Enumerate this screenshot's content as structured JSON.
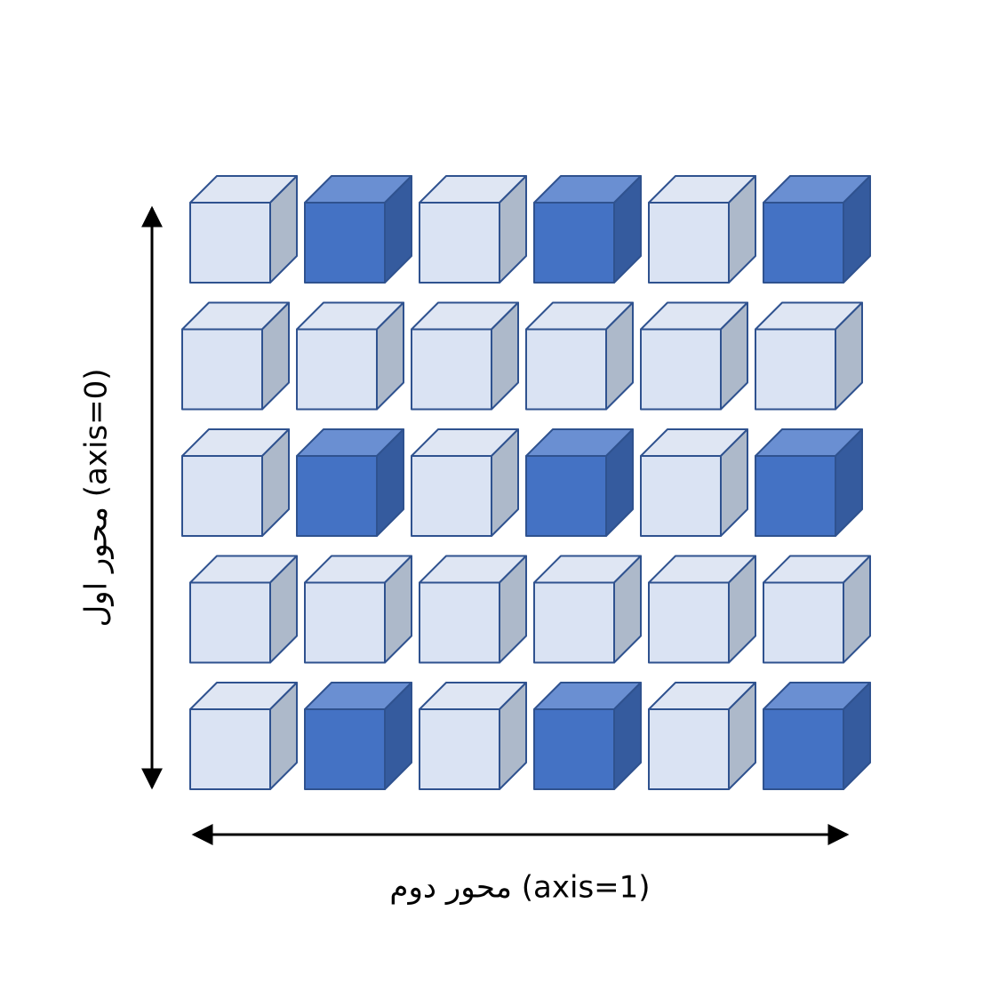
{
  "axes": {
    "axis0_label": "محور اول (axis=0)",
    "axis1_label": "محور دوم (axis=1)"
  },
  "colors": {
    "light_front": "#dae3f3",
    "light_top": "#dfe6f3",
    "light_side": "#adb9ca",
    "dark_front": "#4472c4",
    "dark_top": "#6a8fd2",
    "dark_side": "#355b9e",
    "stroke": "#2f528f",
    "arrow": "#000000"
  },
  "grid": {
    "rows": 5,
    "cols": 6,
    "cells": [
      [
        "light",
        "dark",
        "light",
        "dark",
        "light",
        "dark"
      ],
      [
        "light",
        "light",
        "light",
        "light",
        "light",
        "light"
      ],
      [
        "light",
        "dark",
        "light",
        "dark",
        "light",
        "dark"
      ],
      [
        "light",
        "light",
        "light",
        "light",
        "light",
        "light"
      ],
      [
        "light",
        "dark",
        "light",
        "dark",
        "light",
        "dark"
      ]
    ]
  }
}
